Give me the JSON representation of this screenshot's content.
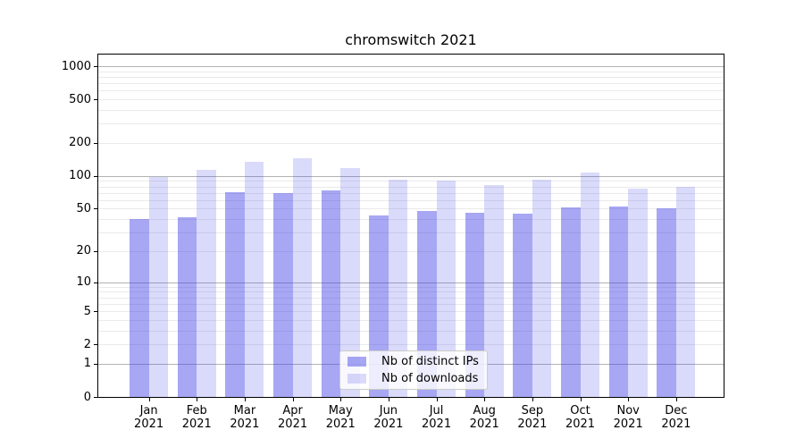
{
  "chart_data": {
    "type": "bar",
    "title": "chromswitch 2021",
    "categories": [
      "Jan 2021",
      "Feb 2021",
      "Mar 2021",
      "Apr 2021",
      "May 2021",
      "Jun 2021",
      "Jul 2021",
      "Aug 2021",
      "Sep 2021",
      "Oct 2021",
      "Nov 2021",
      "Dec 2021"
    ],
    "series": [
      {
        "name": "Nb of distinct IPs",
        "color": "#3c3ce6",
        "alpha": 0.45,
        "values": [
          40,
          42,
          71,
          70,
          73,
          43,
          48,
          46,
          45,
          51,
          52,
          50
        ]
      },
      {
        "name": "Nb of downloads",
        "color": "#3c3ce6",
        "alpha": 0.19,
        "values": [
          97,
          114,
          134,
          144,
          119,
          92,
          91,
          83,
          92,
          107,
          76,
          79
        ]
      }
    ],
    "xlabel": "",
    "ylabel": "",
    "yscale": "log1p",
    "y_tick_values": [
      0,
      1,
      2,
      5,
      10,
      20,
      50,
      100,
      200,
      500,
      1000
    ],
    "ylim": [
      0,
      1264
    ],
    "grid": "on",
    "legend_position": "lower center",
    "colors": {
      "major_gridline": "#b3b3b3",
      "minor_gridline": "#eaeaea",
      "spine": "#000000",
      "background": "#ffffff"
    }
  }
}
